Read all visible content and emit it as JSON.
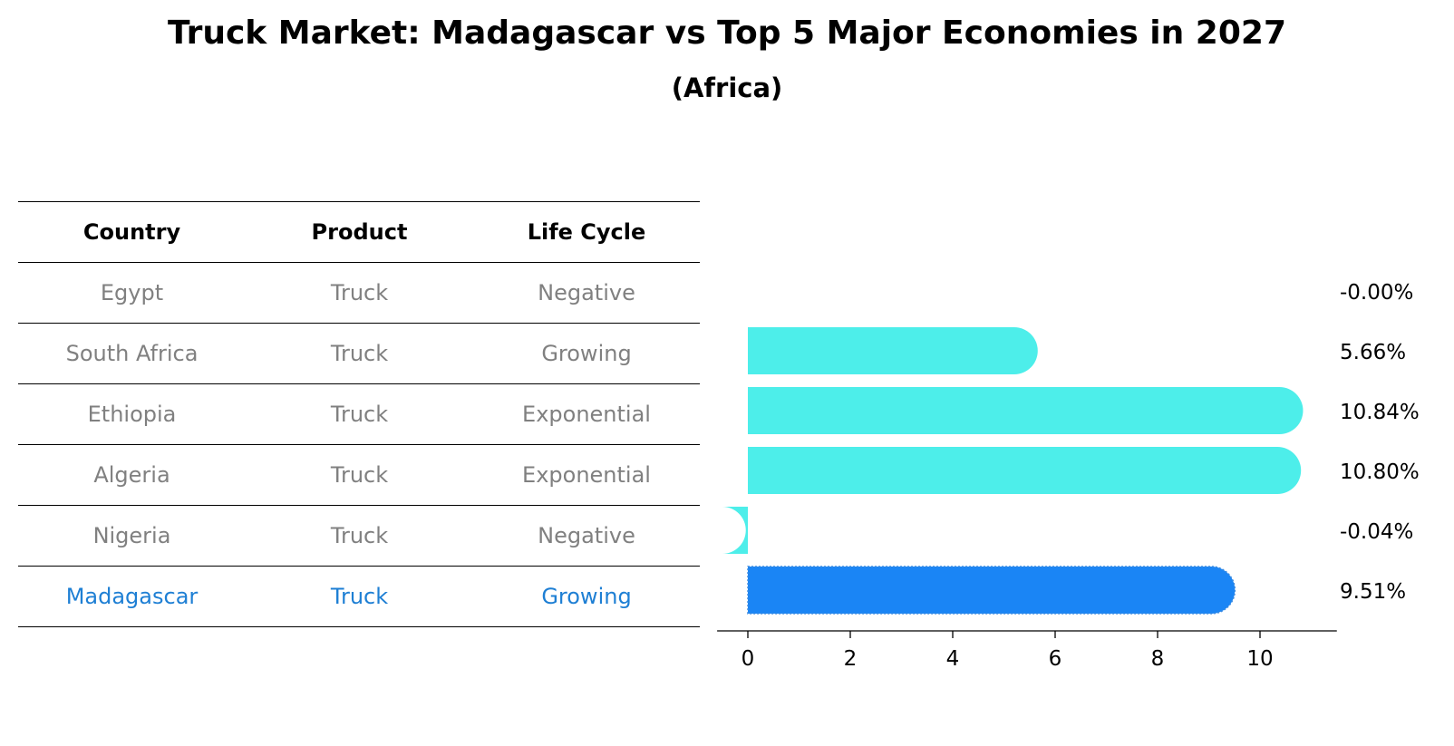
{
  "title": "Truck Market: Madagascar vs Top 5 Major Economies in 2027",
  "subtitle": "(Africa)",
  "table": {
    "headers": [
      "Country",
      "Product",
      "Life Cycle"
    ],
    "rows": [
      [
        "Egypt",
        "Truck",
        "Negative"
      ],
      [
        "South Africa",
        "Truck",
        "Growing"
      ],
      [
        "Ethiopia",
        "Truck",
        "Exponential"
      ],
      [
        "Algeria",
        "Truck",
        "Exponential"
      ],
      [
        "Nigeria",
        "Truck",
        "Negative"
      ],
      [
        "Madagascar",
        "Truck",
        "Growing"
      ]
    ]
  },
  "colors": {
    "bar": "#4deeea",
    "highlight": "#1a85f5",
    "highlight_text": "#1e7fd4",
    "muted_text": "#808080"
  },
  "chart_data": {
    "type": "bar",
    "orientation": "horizontal",
    "categories": [
      "Egypt",
      "South Africa",
      "Ethiopia",
      "Algeria",
      "Nigeria",
      "Madagascar"
    ],
    "values": [
      -0.0,
      5.66,
      10.84,
      10.8,
      -0.04,
      9.51
    ],
    "value_labels": [
      "-0.00%",
      "5.66%",
      "10.84%",
      "10.80%",
      "-0.04%",
      "9.51%"
    ],
    "highlight": "Madagascar",
    "xticks": [
      0,
      2,
      4,
      6,
      8,
      10
    ],
    "xlim": [
      -0.6,
      11.5
    ],
    "title": "",
    "xlabel": "",
    "ylabel": "",
    "grid": false
  }
}
